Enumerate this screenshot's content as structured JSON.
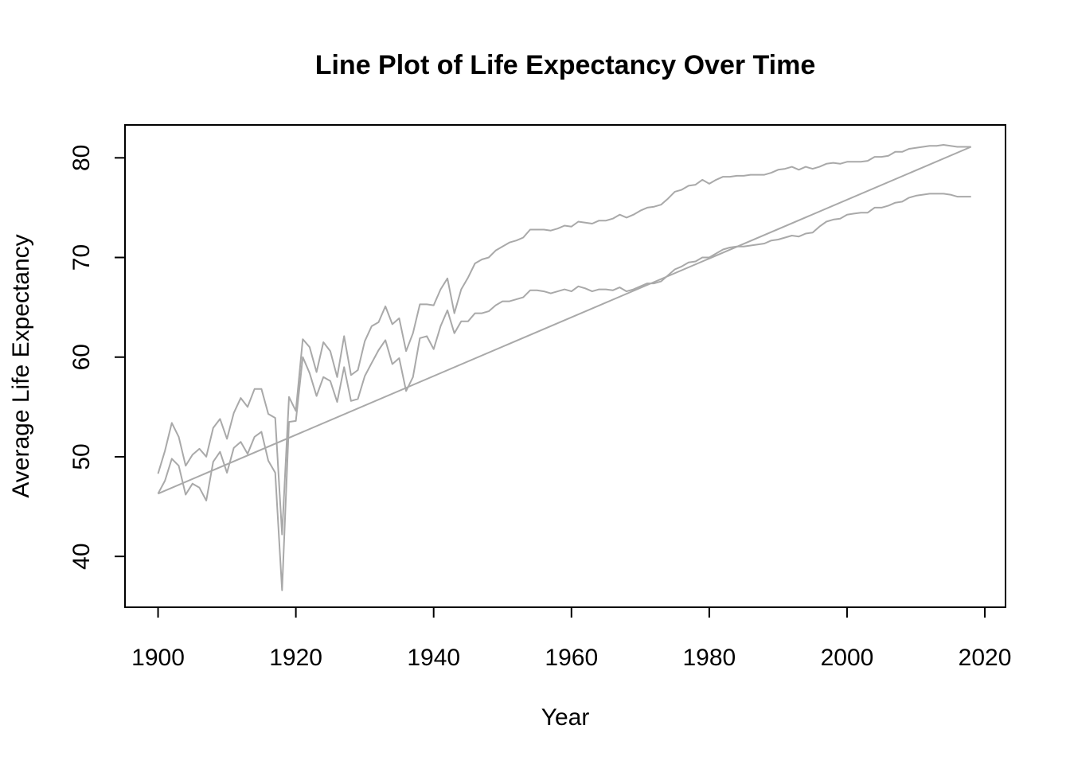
{
  "chart_data": {
    "type": "line",
    "title": "Line Plot of Life Expectancy Over Time",
    "xlabel": "Year",
    "ylabel": "Average Life Expectancy",
    "xlim": [
      1895.2,
      2023.0
    ],
    "ylim": [
      34.9,
      83.3
    ],
    "x_ticks": [
      1900,
      1920,
      1940,
      1960,
      1980,
      2000,
      2020
    ],
    "y_ticks": [
      40,
      50,
      60,
      70,
      80
    ],
    "grid": false,
    "legend": "none",
    "line_color": "#a9a9a9",
    "series": [
      {
        "x": [
          1900,
          1901,
          1902,
          1903,
          1904,
          1905,
          1906,
          1907,
          1908,
          1909,
          1910,
          1911,
          1912,
          1913,
          1914,
          1915,
          1916,
          1917,
          1918,
          1919,
          1920,
          1921,
          1922,
          1923,
          1924,
          1925,
          1926,
          1927,
          1928,
          1929,
          1930,
          1931,
          1932,
          1933,
          1934,
          1935,
          1936,
          1937,
          1938,
          1939,
          1940,
          1941,
          1942,
          1943,
          1944,
          1945,
          1946,
          1947,
          1948,
          1949,
          1950,
          1951,
          1952,
          1953,
          1954,
          1955,
          1956,
          1957,
          1958,
          1959,
          1960,
          1961,
          1962,
          1963,
          1964,
          1965,
          1966,
          1967,
          1968,
          1969,
          1970,
          1971,
          1972,
          1973,
          1974,
          1975,
          1976,
          1977,
          1978,
          1979,
          1980,
          1981,
          1982,
          1983,
          1984,
          1985,
          1986,
          1987,
          1988,
          1989,
          1990,
          1991,
          1992,
          1993,
          1994,
          1995,
          1996,
          1997,
          1998,
          1999,
          2000,
          2001,
          2002,
          2003,
          2004,
          2005,
          2006,
          2007,
          2008,
          2009,
          2010,
          2011,
          2012,
          2013,
          2014,
          2015,
          2016,
          2017,
          2018
        ],
        "y": [
          48.3,
          50.6,
          53.4,
          52.0,
          49.1,
          50.2,
          50.8,
          50.0,
          52.9,
          53.8,
          51.8,
          54.4,
          55.9,
          55.0,
          56.8,
          56.8,
          54.3,
          53.9,
          42.2,
          56.0,
          54.6,
          61.8,
          61.0,
          58.5,
          61.5,
          60.6,
          58.0,
          62.1,
          58.2,
          58.7,
          61.6,
          63.1,
          63.5,
          65.1,
          63.3,
          63.9,
          60.6,
          62.4,
          65.3,
          65.3,
          65.2,
          66.8,
          67.9,
          64.4,
          66.8,
          68.0,
          69.4,
          69.8,
          70.0,
          70.7,
          71.1,
          71.5,
          71.7,
          72.0,
          72.8,
          72.8,
          72.8,
          72.7,
          72.9,
          73.2,
          73.1,
          73.6,
          73.5,
          73.4,
          73.7,
          73.7,
          73.9,
          74.3,
          74.0,
          74.3,
          74.7,
          75.0,
          75.1,
          75.3,
          75.9,
          76.6,
          76.8,
          77.2,
          77.3,
          77.8,
          77.4,
          77.8,
          78.1,
          78.1,
          78.2,
          78.2,
          78.3,
          78.3,
          78.3,
          78.5,
          78.8,
          78.9,
          79.1,
          78.8,
          79.1,
          78.9,
          79.1,
          79.4,
          79.5,
          79.4,
          79.6,
          79.6,
          79.6,
          79.7,
          80.1,
          80.1,
          80.2,
          80.6,
          80.6,
          80.9,
          81.0,
          81.1,
          81.2,
          81.2,
          81.3,
          81.2,
          81.1,
          81.1,
          81.1
        ]
      },
      {
        "x": [
          1900,
          1901,
          1902,
          1903,
          1904,
          1905,
          1906,
          1907,
          1908,
          1909,
          1910,
          1911,
          1912,
          1913,
          1914,
          1915,
          1916,
          1917,
          1918,
          1919,
          1920,
          1921,
          1922,
          1923,
          1924,
          1925,
          1926,
          1927,
          1928,
          1929,
          1930,
          1931,
          1932,
          1933,
          1934,
          1935,
          1936,
          1937,
          1938,
          1939,
          1940,
          1941,
          1942,
          1943,
          1944,
          1945,
          1946,
          1947,
          1948,
          1949,
          1950,
          1951,
          1952,
          1953,
          1954,
          1955,
          1956,
          1957,
          1958,
          1959,
          1960,
          1961,
          1962,
          1963,
          1964,
          1965,
          1966,
          1967,
          1968,
          1969,
          1970,
          1971,
          1972,
          1973,
          1974,
          1975,
          1976,
          1977,
          1978,
          1979,
          1980,
          1981,
          1982,
          1983,
          1984,
          1985,
          1986,
          1987,
          1988,
          1989,
          1990,
          1991,
          1992,
          1993,
          1994,
          1995,
          1996,
          1997,
          1998,
          1999,
          2000,
          2001,
          2002,
          2003,
          2004,
          2005,
          2006,
          2007,
          2008,
          2009,
          2010,
          2011,
          2012,
          2013,
          2014,
          2015,
          2016,
          2017,
          2018
        ],
        "y": [
          46.3,
          47.6,
          49.8,
          49.1,
          46.2,
          47.3,
          46.9,
          45.6,
          49.5,
          50.5,
          48.4,
          50.9,
          51.5,
          50.3,
          52.0,
          52.5,
          49.6,
          48.4,
          36.6,
          53.5,
          53.6,
          60.0,
          58.4,
          56.1,
          58.0,
          57.6,
          55.5,
          59.0,
          55.6,
          55.8,
          58.1,
          59.4,
          60.7,
          61.7,
          59.3,
          59.9,
          56.6,
          58.0,
          61.9,
          62.1,
          60.8,
          63.1,
          64.7,
          62.4,
          63.6,
          63.6,
          64.4,
          64.4,
          64.6,
          65.2,
          65.6,
          65.6,
          65.8,
          66.0,
          66.7,
          66.7,
          66.6,
          66.4,
          66.6,
          66.8,
          66.6,
          67.1,
          66.9,
          66.6,
          66.8,
          66.8,
          66.7,
          67.0,
          66.6,
          66.8,
          67.1,
          67.4,
          67.4,
          67.6,
          68.2,
          68.8,
          69.1,
          69.5,
          69.6,
          70.0,
          70.0,
          70.4,
          70.8,
          71.0,
          71.1,
          71.1,
          71.2,
          71.3,
          71.4,
          71.7,
          71.8,
          72.0,
          72.2,
          72.1,
          72.4,
          72.5,
          73.1,
          73.6,
          73.8,
          73.9,
          74.3,
          74.4,
          74.5,
          74.5,
          75.0,
          75.0,
          75.2,
          75.5,
          75.6,
          76.0,
          76.2,
          76.3,
          76.4,
          76.4,
          76.4,
          76.3,
          76.1,
          76.1,
          76.1
        ]
      },
      {
        "x": [
          1900,
          2018
        ],
        "y": [
          46.3,
          81.1
        ]
      }
    ]
  }
}
